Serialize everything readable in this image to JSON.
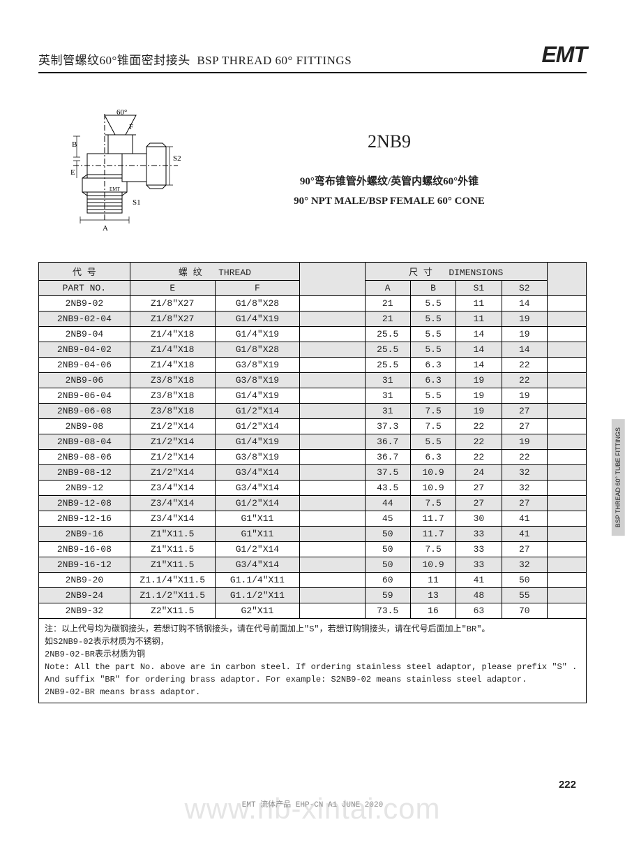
{
  "header": {
    "title_cn": "英制管螺纹60°锥面密封接头",
    "title_en": "BSP THREAD 60° FITTINGS",
    "logo": "EMT"
  },
  "diagram": {
    "labels": {
      "angle": "60°",
      "F": "F",
      "B": "B",
      "E": "E",
      "A": "A",
      "S1": "S1",
      "S2": "S2",
      "brand": "EMT"
    }
  },
  "product": {
    "code": "2NB9",
    "desc_cn": "90°弯布锥管外螺纹/英管内螺纹60°外锥",
    "desc_en": "90° NPT MALE/BSP FEMALE 60° CONE"
  },
  "table": {
    "header1": {
      "part_cn": "代  号",
      "thread_cn": "螺  纹",
      "thread_en": "THREAD",
      "dim_cn": "尺  寸",
      "dim_en": "DIMENSIONS"
    },
    "header2": {
      "part_en": "PART  NO.",
      "E": "E",
      "F": "F",
      "A": "A",
      "B": "B",
      "S1": "S1",
      "S2": "S2"
    },
    "rows": [
      {
        "part": "2NB9-02",
        "E": "Z1/8″X27",
        "F": "G1/8″X28",
        "A": "21",
        "B": "5.5",
        "S1": "11",
        "S2": "14"
      },
      {
        "part": "2NB9-02-04",
        "E": "Z1/8″X27",
        "F": "G1/4″X19",
        "A": "21",
        "B": "5.5",
        "S1": "11",
        "S2": "19"
      },
      {
        "part": "2NB9-04",
        "E": "Z1/4″X18",
        "F": "G1/4″X19",
        "A": "25.5",
        "B": "5.5",
        "S1": "14",
        "S2": "19"
      },
      {
        "part": "2NB9-04-02",
        "E": "Z1/4″X18",
        "F": "G1/8″X28",
        "A": "25.5",
        "B": "5.5",
        "S1": "14",
        "S2": "14"
      },
      {
        "part": "2NB9-04-06",
        "E": "Z1/4″X18",
        "F": "G3/8″X19",
        "A": "25.5",
        "B": "6.3",
        "S1": "14",
        "S2": "22"
      },
      {
        "part": "2NB9-06",
        "E": "Z3/8″X18",
        "F": "G3/8″X19",
        "A": "31",
        "B": "6.3",
        "S1": "19",
        "S2": "22"
      },
      {
        "part": "2NB9-06-04",
        "E": "Z3/8″X18",
        "F": "G1/4″X19",
        "A": "31",
        "B": "5.5",
        "S1": "19",
        "S2": "19"
      },
      {
        "part": "2NB9-06-08",
        "E": "Z3/8″X18",
        "F": "G1/2″X14",
        "A": "31",
        "B": "7.5",
        "S1": "19",
        "S2": "27"
      },
      {
        "part": "2NB9-08",
        "E": "Z1/2″X14",
        "F": "G1/2″X14",
        "A": "37.3",
        "B": "7.5",
        "S1": "22",
        "S2": "27"
      },
      {
        "part": "2NB9-08-04",
        "E": "Z1/2″X14",
        "F": "G1/4″X19",
        "A": "36.7",
        "B": "5.5",
        "S1": "22",
        "S2": "19"
      },
      {
        "part": "2NB9-08-06",
        "E": "Z1/2″X14",
        "F": "G3/8″X19",
        "A": "36.7",
        "B": "6.3",
        "S1": "22",
        "S2": "22"
      },
      {
        "part": "2NB9-08-12",
        "E": "Z1/2″X14",
        "F": "G3/4″X14",
        "A": "37.5",
        "B": "10.9",
        "S1": "24",
        "S2": "32"
      },
      {
        "part": "2NB9-12",
        "E": "Z3/4″X14",
        "F": "G3/4″X14",
        "A": "43.5",
        "B": "10.9",
        "S1": "27",
        "S2": "32"
      },
      {
        "part": "2NB9-12-08",
        "E": "Z3/4″X14",
        "F": "G1/2″X14",
        "A": "44",
        "B": "7.5",
        "S1": "27",
        "S2": "27"
      },
      {
        "part": "2NB9-12-16",
        "E": "Z3/4″X14",
        "F": "G1″X11",
        "A": "45",
        "B": "11.7",
        "S1": "30",
        "S2": "41"
      },
      {
        "part": "2NB9-16",
        "E": "Z1″X11.5",
        "F": "G1″X11",
        "A": "50",
        "B": "11.7",
        "S1": "33",
        "S2": "41"
      },
      {
        "part": "2NB9-16-08",
        "E": "Z1″X11.5",
        "F": "G1/2″X14",
        "A": "50",
        "B": "7.5",
        "S1": "33",
        "S2": "27"
      },
      {
        "part": "2NB9-16-12",
        "E": "Z1″X11.5",
        "F": "G3/4″X14",
        "A": "50",
        "B": "10.9",
        "S1": "33",
        "S2": "32"
      },
      {
        "part": "2NB9-20",
        "E": "Z1.1/4″X11.5",
        "F": "G1.1/4″X11",
        "A": "60",
        "B": "11",
        "S1": "41",
        "S2": "50"
      },
      {
        "part": "2NB9-24",
        "E": "Z1.1/2″X11.5",
        "F": "G1.1/2″X11",
        "A": "59",
        "B": "13",
        "S1": "48",
        "S2": "55"
      },
      {
        "part": "2NB9-32",
        "E": "Z2″X11.5",
        "F": "G2″X11",
        "A": "73.5",
        "B": "16",
        "S1": "63",
        "S2": "70"
      }
    ]
  },
  "notes": {
    "cn1": "注：以上代号均为碳钢接头，若想订购不锈钢接头，请在代号前面加上\"S\"，若想订购铜接头，请在代号后面加上\"BR\"。",
    "cn2": "如S2NB9-02表示材质为不锈钢，",
    "cn3": "2NB9-02-BR表示材质为铜",
    "en1": "Note: All the part No. above are in carbon steel. If ordering stainless steel adaptor, please prefix \"S\" .",
    "en2": "And suffix \"BR\" for ordering brass adaptor. For example: S2NB9-02  means stainless steel adaptor.",
    "en3": "2NB9-02-BR means brass adaptor."
  },
  "side_tab": "BSP THREAD 60°\nTUBE FITTINGS",
  "page_num": "222",
  "footer": "EMT 流体产品 EHP-CN A1 JUNE 2020",
  "watermark": "www.nb-xintai.com"
}
